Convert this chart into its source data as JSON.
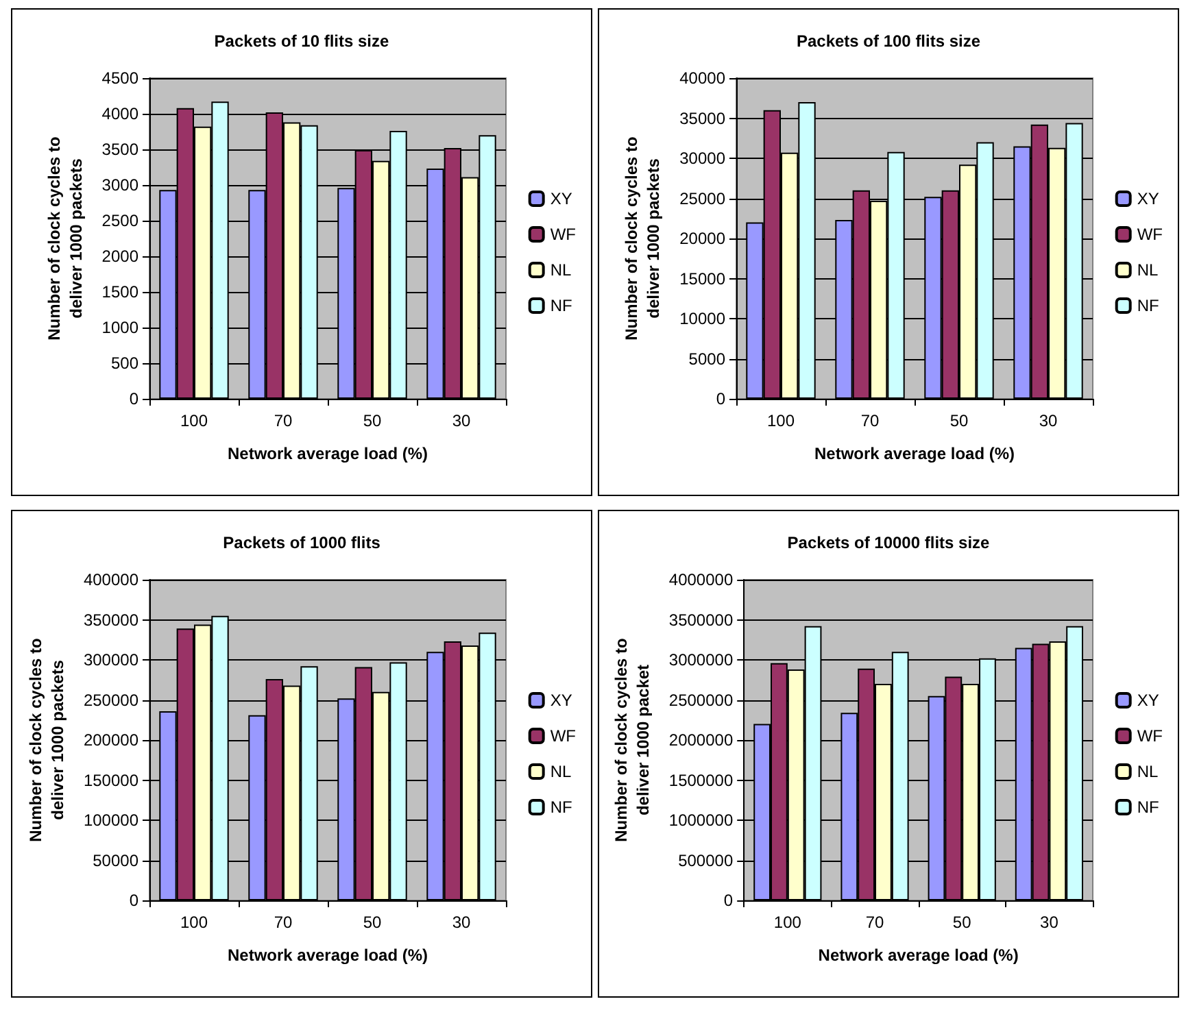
{
  "chart_data": [
    {
      "type": "bar",
      "title": "Packets of 10 flits size",
      "xlabel": "Network average load (%)",
      "ylabel": "Number of clock cycles to\ndeliver 1000 packets",
      "categories": [
        "100",
        "70",
        "50",
        "30"
      ],
      "series": [
        {
          "name": "XY",
          "color": "#9999ff",
          "values": [
            2930,
            2930,
            2960,
            3230
          ]
        },
        {
          "name": "WF",
          "color": "#993366",
          "values": [
            4080,
            4020,
            3490,
            3520
          ]
        },
        {
          "name": "NL",
          "color": "#ffffcc",
          "values": [
            3820,
            3880,
            3340,
            3110
          ]
        },
        {
          "name": "NF",
          "color": "#ccffff",
          "values": [
            4170,
            3840,
            3760,
            3700
          ]
        }
      ],
      "ylim": [
        0,
        4500
      ],
      "yticks": [
        0,
        500,
        1000,
        1500,
        2000,
        2500,
        3000,
        3500,
        4000,
        4500
      ],
      "grid": "y",
      "legend": "right"
    },
    {
      "type": "bar",
      "title": "Packets of 100 flits size",
      "xlabel": "Network average load (%)",
      "ylabel": "Number of clock cycles to\ndeliver 1000 packets",
      "categories": [
        "100",
        "70",
        "50",
        "30"
      ],
      "series": [
        {
          "name": "XY",
          "color": "#9999ff",
          "values": [
            22000,
            22300,
            25200,
            31500
          ]
        },
        {
          "name": "WF",
          "color": "#993366",
          "values": [
            36000,
            26000,
            26000,
            34200
          ]
        },
        {
          "name": "NL",
          "color": "#ffffcc",
          "values": [
            30700,
            24700,
            29200,
            31300
          ]
        },
        {
          "name": "NF",
          "color": "#ccffff",
          "values": [
            37000,
            30800,
            32000,
            34400
          ]
        }
      ],
      "ylim": [
        0,
        40000
      ],
      "yticks": [
        0,
        5000,
        10000,
        15000,
        20000,
        25000,
        30000,
        35000,
        40000
      ],
      "grid": "y",
      "legend": "right"
    },
    {
      "type": "bar",
      "title": "Packets of 1000 flits",
      "xlabel": "Network average load (%)",
      "ylabel": "Number of clock cycles to\ndeliver 1000 packets",
      "categories": [
        "100",
        "70",
        "50",
        "30"
      ],
      "series": [
        {
          "name": "XY",
          "color": "#9999ff",
          "values": [
            236000,
            231000,
            252000,
            310000
          ]
        },
        {
          "name": "WF",
          "color": "#993366",
          "values": [
            339000,
            276000,
            291000,
            323000
          ]
        },
        {
          "name": "NL",
          "color": "#ffffcc",
          "values": [
            344000,
            268000,
            260000,
            318000
          ]
        },
        {
          "name": "NF",
          "color": "#ccffff",
          "values": [
            355000,
            292000,
            297000,
            334000
          ]
        }
      ],
      "ylim": [
        0,
        400000
      ],
      "yticks": [
        0,
        50000,
        100000,
        150000,
        200000,
        250000,
        300000,
        350000,
        400000
      ],
      "grid": "y",
      "legend": "right"
    },
    {
      "type": "bar",
      "title": "Packets of 10000 flits size",
      "xlabel": "Network average load (%)",
      "ylabel": "Number of clock cycles to\ndeliver 1000 packet",
      "categories": [
        "100",
        "70",
        "50",
        "30"
      ],
      "series": [
        {
          "name": "XY",
          "color": "#9999ff",
          "values": [
            2200000,
            2340000,
            2550000,
            3150000
          ]
        },
        {
          "name": "WF",
          "color": "#993366",
          "values": [
            2960000,
            2890000,
            2790000,
            3200000
          ]
        },
        {
          "name": "NL",
          "color": "#ffffcc",
          "values": [
            2880000,
            2700000,
            2700000,
            3230000
          ]
        },
        {
          "name": "NF",
          "color": "#ccffff",
          "values": [
            3420000,
            3100000,
            3020000,
            3420000
          ]
        }
      ],
      "ylim": [
        0,
        4000000
      ],
      "yticks": [
        0,
        500000,
        1000000,
        1500000,
        2000000,
        2500000,
        3000000,
        3500000,
        4000000
      ],
      "grid": "y",
      "legend": "right"
    }
  ]
}
